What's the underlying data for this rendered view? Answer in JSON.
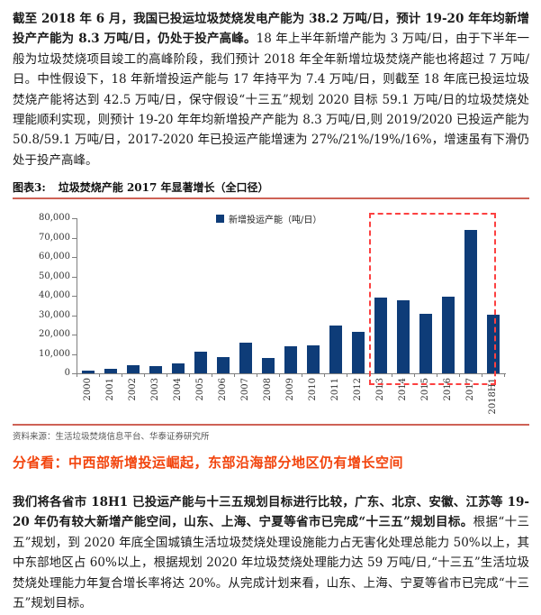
{
  "paragraphs": {
    "p1_bold": "截至 2018 年 6 月，我国已投运垃圾焚烧发电产能为 38.2 万吨/日，预计 19-20 年年均新增投产产能为 8.3 万吨/日，仍处于投产高峰。",
    "p1_regular": "18 年上半年新增产能为 3 万吨/日，由于下半年一般为垃圾焚烧项目竣工的高峰阶段，我们预计 2018 年全年新增垃圾焚烧产能也将超过 7 万吨/日。中性假设下，18 年新增投运产能与 17 年持平为 7.4 万吨/日，则截至 18 年底已投运垃圾焚烧产能将达到 42.5 万吨/日，保守假设“十三五”规划 2020 目标 59.1 万吨/日的垃圾焚烧处理能顺利实现，则预计 19-20 年年均新增投产产能为 8.3 万吨/日,则 2019/2020 已投运产能为 50.8/59.1 万吨/日，2017-2020 年已投运产能增速为 27%/21%/19%/16%，增速虽有下滑仍处于投产高峰。",
    "p2_bold": "我们将各省市 18H1 已投运产能与十三五规划目标进行比较，广东、北京、安徽、江苏等 19-20 年仍有较大新增产能空间，山东、上海、宁夏等省市已完成“十三五”规划目标。",
    "p2_regular": "根据“十三五”规划，到 2020 年底全国城镇生活垃圾焚烧处理设施能力占无害化处理总能力 50%以上，其中东部地区占 60%以上，根据规划 2020 年垃圾焚烧处理能力达 59 万吨/日,“十三五”生活垃圾焚烧处理能力年复合增长率将达 20%。从完成计划来看，山东、上海、宁夏等省市已完成“十三五”规划目标。"
  },
  "figure": {
    "label": "图表3:",
    "title": "垃圾焚烧产能 2017 年显著增长（全口径）",
    "source": "资料来源：生活垃圾焚烧信息平台、华泰证券研究所"
  },
  "section_heading": "分省看：中西部新增投运崛起，东部沿海部分地区仍有增长空间",
  "chart_data": {
    "type": "bar",
    "legend": "新增投运产能（吨/日）",
    "categories": [
      "2000",
      "2001",
      "2002",
      "2003",
      "2004",
      "2005",
      "2006",
      "2007",
      "2008",
      "2009",
      "2010",
      "2011",
      "2012",
      "2013",
      "2014",
      "2015",
      "2016",
      "2017",
      "2018H1"
    ],
    "values": [
      1500,
      2500,
      4000,
      3800,
      5300,
      11000,
      8500,
      16000,
      8000,
      14000,
      14500,
      24500,
      21500,
      39000,
      37500,
      30500,
      39500,
      74000,
      30000
    ],
    "ylim": [
      0,
      80000
    ],
    "ytick_interval": 10000,
    "grid": false,
    "legend_position": "top-center",
    "highlight_range": [
      "2013",
      "2018H1"
    ],
    "bar_color": "#0E3C78",
    "highlight_color": "#FC4141",
    "axis_color": "#7f7f7f",
    "tick_label_color": "#333333"
  },
  "colors": {
    "accent_rule": "#CE6256",
    "section_heading": "#F2440D",
    "body_text": "#1A1A1A",
    "source_text": "#555555"
  }
}
